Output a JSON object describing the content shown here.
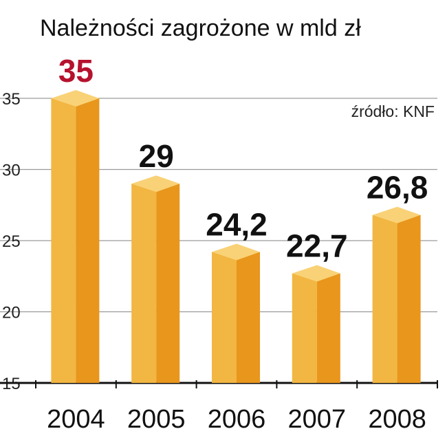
{
  "chart_data": {
    "type": "bar",
    "title": "Należności zagrożone w mld zł",
    "source": "źródło: KNF",
    "categories": [
      "2004",
      "2005",
      "2006",
      "2007",
      "2008"
    ],
    "values": [
      35,
      29,
      24.2,
      22.7,
      26.8
    ],
    "value_labels": [
      "35",
      "29",
      "24,2",
      "22,7",
      "26,8"
    ],
    "highlight_index": 0,
    "ylim": [
      15,
      35
    ],
    "yticks": [
      15,
      20,
      25,
      30,
      35
    ],
    "grid": true,
    "colors": {
      "bar_front": "#F2B642",
      "bar_side": "#E8961C",
      "bar_top": "#F9D277",
      "highlight_label": "#B5122E",
      "label": "#111111",
      "grid": "#9a9a9a",
      "axis": "#111111"
    }
  }
}
